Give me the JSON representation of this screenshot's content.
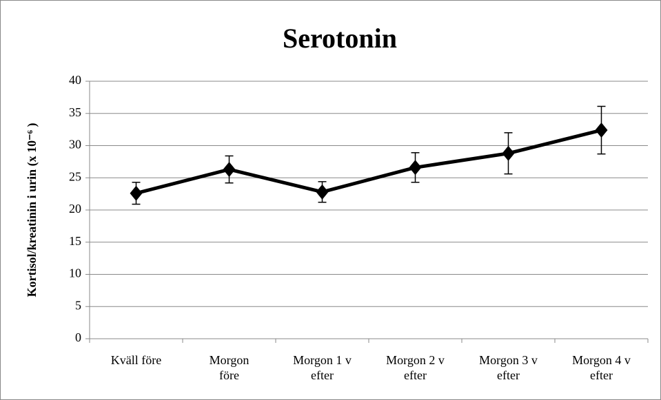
{
  "chart_data": {
    "type": "line",
    "title": "Serotonin",
    "y_label": "Kortisol/kreatinin i urin (x 10⁻⁶ )",
    "categories": [
      "Kväll före",
      "Morgon\nföre",
      "Morgon 1 v\nefter",
      "Morgon 2 v\nefter",
      "Morgon 3 v\nefter",
      "Morgon 4 v\nefter"
    ],
    "values": [
      22.6,
      26.3,
      22.8,
      26.6,
      28.8,
      32.4
    ],
    "errors": [
      1.7,
      2.1,
      1.6,
      2.3,
      3.2,
      3.7
    ],
    "color": "#000000",
    "ylim": [
      0,
      40
    ],
    "yticks": [
      0,
      5,
      10,
      15,
      20,
      25,
      30,
      35,
      40
    ],
    "grid": true
  }
}
